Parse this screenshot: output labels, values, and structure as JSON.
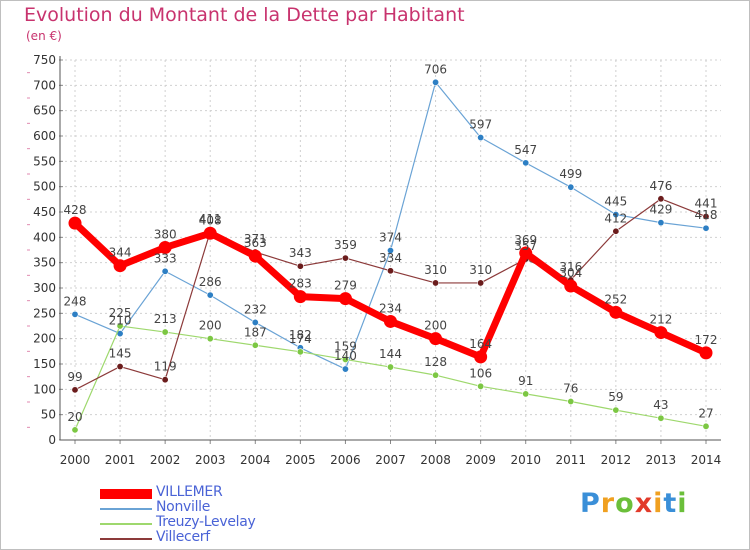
{
  "title": "Evolution du Montant de la Dette par Habitant",
  "unit": "(en €)",
  "logo": {
    "letters": [
      {
        "char": "P",
        "color": "#3a8fd8"
      },
      {
        "char": "r",
        "color": "#f0a020"
      },
      {
        "char": "o",
        "color": "#6bbf3a"
      },
      {
        "char": "x",
        "color": "#e23a2a"
      },
      {
        "char": "i",
        "color": "#f0a020"
      },
      {
        "char": "t",
        "color": "#3a8fd8"
      },
      {
        "char": "i",
        "color": "#6bbf3a"
      }
    ]
  },
  "chart_data": {
    "type": "line",
    "x": [
      2000,
      2001,
      2002,
      2003,
      2004,
      2005,
      2006,
      2007,
      2008,
      2009,
      2010,
      2011,
      2012,
      2013,
      2014
    ],
    "ylim": [
      0,
      750
    ],
    "yticks": [
      0,
      50,
      100,
      150,
      200,
      250,
      300,
      350,
      400,
      450,
      500,
      550,
      600,
      650,
      700,
      750
    ],
    "grid": true,
    "legend_position": "bottom-left",
    "series": [
      {
        "name": "VILLEMER",
        "color": "#ff0000",
        "line_width": 7,
        "marker_radius": 6.5,
        "values": [
          428,
          344,
          380,
          408,
          363,
          283,
          279,
          234,
          200,
          164,
          369,
          304,
          252,
          212,
          172
        ]
      },
      {
        "name": "Nonville",
        "color": "#6aa3d5",
        "marker_color": "#2d7fc4",
        "line_width": 1.2,
        "marker_radius": 3.2,
        "values": [
          248,
          210,
          333,
          286,
          232,
          182,
          140,
          374,
          706,
          597,
          547,
          499,
          445,
          429,
          418
        ]
      },
      {
        "name": "Treuzy-Levelay",
        "color": "#9ed86d",
        "marker_color": "#7cc743",
        "line_width": 1.2,
        "marker_radius": 3.2,
        "values": [
          20,
          225,
          213,
          200,
          187,
          174,
          159,
          144,
          128,
          106,
          91,
          76,
          59,
          43,
          27
        ]
      },
      {
        "name": "Villecerf",
        "color": "#8c3a3a",
        "marker_color": "#6b1c1c",
        "line_width": 1.2,
        "marker_radius": 3.2,
        "values": [
          99,
          145,
          119,
          411,
          371,
          343,
          359,
          334,
          310,
          310,
          357,
          316,
          412,
          476,
          441
        ]
      }
    ]
  }
}
